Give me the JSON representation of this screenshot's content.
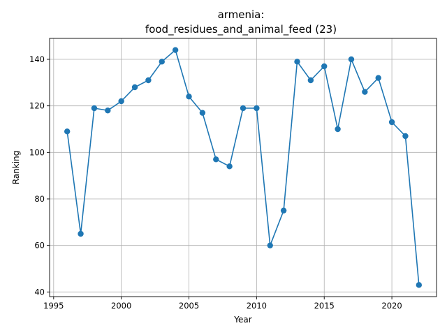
{
  "chart_data": {
    "type": "line",
    "title_line1": "armenia:",
    "title_line2": "food_residues_and_animal_feed (23)",
    "xlabel": "Year",
    "ylabel": "Ranking",
    "x": [
      1996,
      1997,
      1998,
      1999,
      2000,
      2001,
      2002,
      2003,
      2004,
      2005,
      2006,
      2007,
      2008,
      2009,
      2010,
      2011,
      2012,
      2013,
      2014,
      2015,
      2016,
      2017,
      2018,
      2019,
      2020,
      2021,
      2022
    ],
    "y": [
      109,
      65,
      119,
      118,
      122,
      128,
      131,
      139,
      144,
      124,
      117,
      97,
      94,
      119,
      119,
      60,
      75,
      139,
      131,
      137,
      110,
      140,
      126,
      132,
      113,
      107,
      43
    ],
    "xlim": [
      1994.7,
      2023.3
    ],
    "ylim": [
      38,
      149
    ],
    "xticks": [
      1995,
      2000,
      2005,
      2010,
      2015,
      2020
    ],
    "yticks": [
      40,
      60,
      80,
      100,
      120,
      140
    ],
    "grid": true,
    "color": "#1f77b4"
  }
}
